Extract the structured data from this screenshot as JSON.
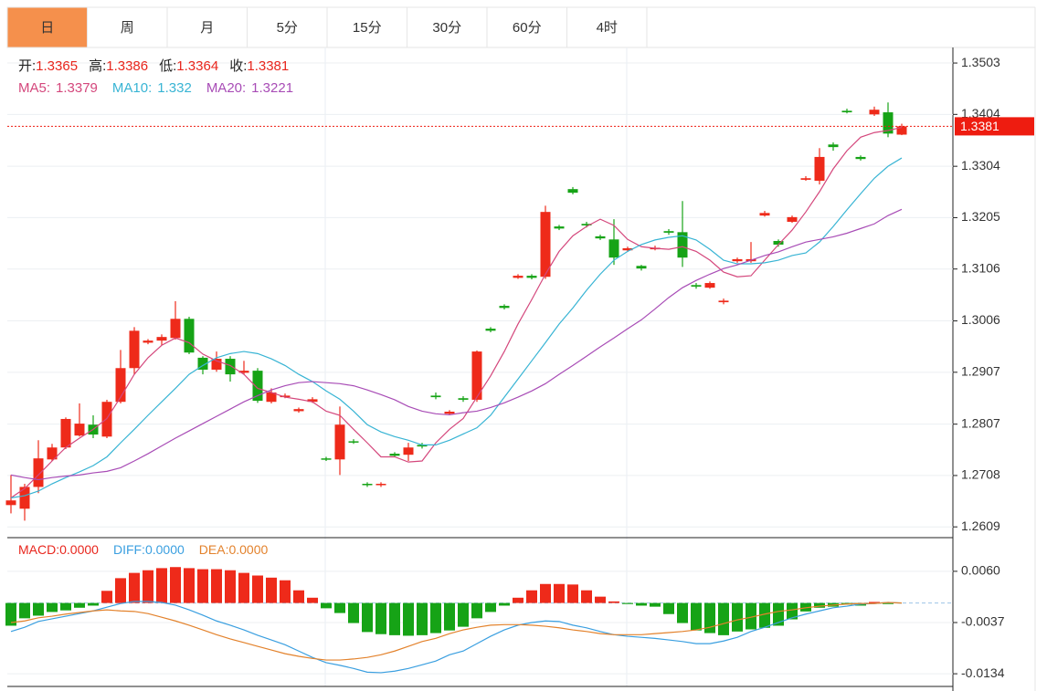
{
  "tabs": [
    "日",
    "周",
    "月",
    "5分",
    "15分",
    "30分",
    "60分",
    "4时"
  ],
  "active_tab": 0,
  "chart_data": [
    {
      "type": "candlestick",
      "header": [
        {
          "label": "开:",
          "value": 1.3365
        },
        {
          "label": "高:",
          "value": 1.3386
        },
        {
          "label": "低:",
          "value": 1.3364
        },
        {
          "label": "收:",
          "value": 1.3381
        }
      ],
      "header_value_color": "#e8261d",
      "up_color": "#ee2a1a",
      "down_color": "#16a316",
      "open": [
        1.2651,
        1.2644,
        1.2686,
        1.2739,
        1.2762,
        1.2785,
        1.2806,
        1.2783,
        1.285,
        1.2915,
        1.2964,
        1.2968,
        1.2973,
        1.301,
        1.2935,
        1.2912,
        1.2933,
        1.2906,
        1.291,
        1.285,
        1.2859,
        1.2832,
        1.285,
        1.2741,
        1.2739,
        1.2774,
        1.2692,
        1.269,
        1.275,
        1.2748,
        1.2767,
        1.2862,
        1.2827,
        1.2857,
        1.2854,
        1.2991,
        1.3035,
        1.3089,
        1.3093,
        1.3091,
        1.3188,
        1.326,
        1.3193,
        1.3169,
        1.3163,
        1.3142,
        1.3112,
        1.3144,
        1.3179,
        1.3177,
        1.3075,
        1.307,
        1.3042,
        1.3121,
        1.3121,
        1.3209,
        1.316,
        1.3197,
        1.3278,
        1.3276,
        1.3346,
        1.3411,
        1.3322,
        1.3404,
        1.3408,
        1.3365
      ],
      "high": [
        1.2709,
        1.2692,
        1.2776,
        1.2769,
        1.282,
        1.2847,
        1.2824,
        1.2854,
        1.295,
        1.2994,
        1.2971,
        1.298,
        1.3044,
        1.3014,
        1.2938,
        1.2947,
        1.2938,
        1.2929,
        1.2915,
        1.2876,
        1.2866,
        1.2839,
        1.2859,
        1.2744,
        1.2841,
        1.2778,
        1.2695,
        1.2695,
        1.2753,
        1.2771,
        1.2771,
        1.2868,
        1.2834,
        1.2861,
        1.2949,
        1.2994,
        1.3038,
        1.3096,
        1.3096,
        1.3228,
        1.3191,
        1.3264,
        1.3197,
        1.3172,
        1.3202,
        1.3149,
        1.3114,
        1.3151,
        1.3183,
        1.3237,
        1.3079,
        1.3082,
        1.3049,
        1.3128,
        1.3158,
        1.3218,
        1.3163,
        1.3209,
        1.3285,
        1.3339,
        1.335,
        1.3415,
        1.3325,
        1.3419,
        1.3427,
        1.3386
      ],
      "low": [
        1.2635,
        1.2621,
        1.2674,
        1.2736,
        1.2759,
        1.2783,
        1.278,
        1.278,
        1.2847,
        1.2903,
        1.2961,
        1.2959,
        1.297,
        1.2942,
        1.2903,
        1.2908,
        1.2889,
        1.2903,
        1.2848,
        1.2847,
        1.2857,
        1.2829,
        1.2848,
        1.2736,
        1.2709,
        1.2769,
        1.2686,
        1.2686,
        1.2743,
        1.2736,
        1.276,
        1.2855,
        1.2825,
        1.285,
        1.285,
        1.2984,
        1.3028,
        1.3087,
        1.3086,
        1.3087,
        1.3181,
        1.325,
        1.3186,
        1.3162,
        1.3114,
        1.3139,
        1.3103,
        1.3142,
        1.3172,
        1.311,
        1.3068,
        1.3068,
        1.3038,
        1.3118,
        1.3118,
        1.3207,
        1.3149,
        1.3195,
        1.3276,
        1.3269,
        1.3334,
        1.3406,
        1.3315,
        1.3401,
        1.336,
        1.3364
      ],
      "close": [
        1.266,
        1.2686,
        1.2741,
        1.2762,
        1.2817,
        1.2808,
        1.2787,
        1.285,
        1.2915,
        1.2987,
        1.2968,
        1.2975,
        1.301,
        1.2945,
        1.2912,
        1.2933,
        1.2903,
        1.291,
        1.2852,
        1.2868,
        1.2862,
        1.2836,
        1.2855,
        1.2739,
        1.2806,
        1.2773,
        1.269,
        1.2692,
        1.2746,
        1.2762,
        1.2764,
        1.2859,
        1.2831,
        1.2854,
        1.2947,
        1.2987,
        1.3031,
        1.3093,
        1.3089,
        1.3216,
        1.3184,
        1.3253,
        1.319,
        1.3165,
        1.3128,
        1.3146,
        1.3107,
        1.3147,
        1.3176,
        1.3128,
        1.3072,
        1.3079,
        1.3045,
        1.3125,
        1.3125,
        1.3214,
        1.3153,
        1.3206,
        1.3281,
        1.3322,
        1.3341,
        1.3408,
        1.3318,
        1.3413,
        1.3367,
        1.3381
      ],
      "series": [
        {
          "name": "MA5:",
          "legend_value": 1.3379,
          "color": "#d4477c",
          "values": [
            1.2665,
            1.2683,
            1.2709,
            1.2736,
            1.2762,
            1.278,
            1.2797,
            1.2818,
            1.2859,
            1.2903,
            1.2935,
            1.2959,
            1.2973,
            1.2964,
            1.2942,
            1.2929,
            1.292,
            1.2903,
            1.2876,
            1.2868,
            1.2859,
            1.2855,
            1.285,
            1.2832,
            1.2824,
            1.2797,
            1.2771,
            1.2744,
            1.2744,
            1.2734,
            1.2736,
            1.2771,
            1.2797,
            1.2818,
            1.2859,
            1.29,
            1.2947,
            1.3,
            1.3047,
            1.3096,
            1.314,
            1.317,
            1.3188,
            1.3202,
            1.319,
            1.3163,
            1.3149,
            1.3146,
            1.3144,
            1.3149,
            1.314,
            1.3123,
            1.31,
            1.3091,
            1.3093,
            1.3123,
            1.3153,
            1.3181,
            1.3216,
            1.3255,
            1.3299,
            1.3334,
            1.336,
            1.3369,
            1.3373,
            1.3379
          ]
        },
        {
          "name": "MA10:",
          "legend_value": 1.332,
          "color": "#38b4d4",
          "values": [
            1.2665,
            1.2669,
            1.2678,
            1.2692,
            1.2704,
            1.2715,
            1.2727,
            1.2744,
            1.2771,
            1.2797,
            1.2824,
            1.285,
            1.2876,
            1.2903,
            1.292,
            1.2935,
            1.2943,
            1.2947,
            1.2943,
            1.2933,
            1.292,
            1.2903,
            1.2889,
            1.2871,
            1.2855,
            1.2832,
            1.2806,
            1.2792,
            1.2783,
            1.2776,
            1.2767,
            1.2767,
            1.2776,
            1.2788,
            1.28,
            1.2824,
            1.2859,
            1.2894,
            1.2929,
            1.2964,
            1.3,
            1.3031,
            1.3065,
            1.3096,
            1.3123,
            1.314,
            1.3153,
            1.3162,
            1.3167,
            1.317,
            1.3162,
            1.3144,
            1.3123,
            1.3116,
            1.3116,
            1.3118,
            1.3123,
            1.3132,
            1.3137,
            1.3158,
            1.3188,
            1.322,
            1.3251,
            1.3281,
            1.3304,
            1.332
          ]
        },
        {
          "name": "MA20:",
          "legend_value": 1.3221,
          "color": "#a84cb6",
          "values": [
            1.2709,
            1.2704,
            1.27,
            1.2704,
            1.2707,
            1.2709,
            1.2713,
            1.2716,
            1.2723,
            1.2736,
            1.275,
            1.2765,
            1.278,
            1.2794,
            1.2808,
            1.2822,
            1.2836,
            1.285,
            1.2862,
            1.2873,
            1.2881,
            1.2887,
            1.2889,
            1.2887,
            1.2885,
            1.2881,
            1.2873,
            1.2864,
            1.2854,
            1.2841,
            1.2832,
            1.2827,
            1.2825,
            1.2829,
            1.2832,
            1.2839,
            1.2848,
            1.2859,
            1.2871,
            1.2885,
            1.2903,
            1.292,
            1.2938,
            1.2956,
            1.2973,
            1.2991,
            1.3008,
            1.3029,
            1.3051,
            1.307,
            1.3084,
            1.3096,
            1.3107,
            1.3114,
            1.3123,
            1.3132,
            1.3139,
            1.3149,
            1.3158,
            1.3163,
            1.3168,
            1.3175,
            1.3184,
            1.3193,
            1.3209,
            1.3221
          ]
        }
      ],
      "ylim": [
        1.259,
        1.3533
      ],
      "yticks": [
        1.3503,
        1.3404,
        1.3304,
        1.3205,
        1.3106,
        1.3006,
        1.2907,
        1.2807,
        1.2708,
        1.2609
      ],
      "last_price": 1.3381,
      "last_price_color": "#ee1c10",
      "grid": true
    },
    {
      "type": "macd",
      "up_color": "#ee2a1a",
      "down_color": "#16a316",
      "series": [
        {
          "name": "MACD:",
          "legend_value": "0.0000",
          "color": "#e8261d",
          "values": [
            -0.0043,
            -0.0029,
            -0.0024,
            -0.0017,
            -0.0014,
            -0.0009,
            -0.0005,
            0.0023,
            0.0047,
            0.0057,
            0.0062,
            0.0066,
            0.0068,
            0.0066,
            0.0064,
            0.0064,
            0.0062,
            0.0057,
            0.0052,
            0.0048,
            0.0043,
            0.0024,
            0.001,
            -0.001,
            -0.0019,
            -0.0038,
            -0.0055,
            -0.0059,
            -0.0061,
            -0.0062,
            -0.0061,
            -0.0057,
            -0.0052,
            -0.0045,
            -0.0029,
            -0.0017,
            -0.0005,
            0.001,
            0.0024,
            0.0036,
            0.0036,
            0.0035,
            0.0024,
            0.0012,
            0.0003,
            -0.0002,
            -0.0005,
            -0.0007,
            -0.0021,
            -0.0038,
            -0.0052,
            -0.0057,
            -0.0061,
            -0.0054,
            -0.005,
            -0.0047,
            -0.0043,
            -0.0031,
            -0.0016,
            -0.0009,
            -0.0007,
            -0.0003,
            -0.0005,
            0.0002,
            -0.0002,
            0
          ]
        },
        {
          "name": "DIFF:",
          "legend_value": "0.0000",
          "color": "#3a9fe0",
          "values": [
            -0.0054,
            -0.0046,
            -0.0035,
            -0.003,
            -0.0025,
            -0.002,
            -0.0015,
            -0.0008,
            -0.0001,
            0.0003,
            0.0003,
            0.0001,
            -0.0004,
            -0.0013,
            -0.0023,
            -0.0034,
            -0.0042,
            -0.0051,
            -0.0061,
            -0.007,
            -0.0079,
            -0.0091,
            -0.0103,
            -0.0113,
            -0.0118,
            -0.0124,
            -0.0131,
            -0.0132,
            -0.0129,
            -0.0124,
            -0.0117,
            -0.011,
            -0.0098,
            -0.0091,
            -0.0077,
            -0.0063,
            -0.0051,
            -0.0042,
            -0.0037,
            -0.0034,
            -0.0035,
            -0.0042,
            -0.0047,
            -0.0054,
            -0.006,
            -0.0063,
            -0.0065,
            -0.0067,
            -0.007,
            -0.0073,
            -0.0077,
            -0.0077,
            -0.0072,
            -0.0065,
            -0.0054,
            -0.0046,
            -0.0037,
            -0.0028,
            -0.0021,
            -0.0015,
            -0.0009,
            -0.0006,
            -0.0002,
            -0.0001,
            0.0001,
            0
          ]
        },
        {
          "name": "DEA:",
          "legend_value": "0.0000",
          "color": "#e3822c",
          "values": [
            -0.0037,
            -0.0034,
            -0.0028,
            -0.0025,
            -0.0021,
            -0.0018,
            -0.0015,
            -0.0013,
            -0.0015,
            -0.0016,
            -0.002,
            -0.0027,
            -0.0034,
            -0.0042,
            -0.0051,
            -0.006,
            -0.0068,
            -0.0075,
            -0.0082,
            -0.0089,
            -0.0096,
            -0.0101,
            -0.0105,
            -0.0108,
            -0.0108,
            -0.0106,
            -0.0103,
            -0.0098,
            -0.0091,
            -0.0082,
            -0.0073,
            -0.0067,
            -0.0058,
            -0.0051,
            -0.0046,
            -0.0042,
            -0.0041,
            -0.0041,
            -0.0042,
            -0.0044,
            -0.0047,
            -0.0051,
            -0.0054,
            -0.0058,
            -0.006,
            -0.006,
            -0.006,
            -0.0058,
            -0.0056,
            -0.0054,
            -0.0051,
            -0.0046,
            -0.0039,
            -0.0032,
            -0.0027,
            -0.0021,
            -0.0016,
            -0.0013,
            -0.0009,
            -0.0006,
            -0.0004,
            -0.0002,
            -0.0001,
            -0.0001,
            0.0001,
            0
          ]
        }
      ],
      "ylim": [
        -0.0158,
        0.0122
      ],
      "yticks": [
        {
          "value": 0.006,
          "label": "0.0060"
        },
        {
          "value": -0.0037,
          "label": "-0.0037"
        },
        {
          "value": -0.0134,
          "label": "-0.0134"
        }
      ],
      "zero_line": true
    }
  ]
}
